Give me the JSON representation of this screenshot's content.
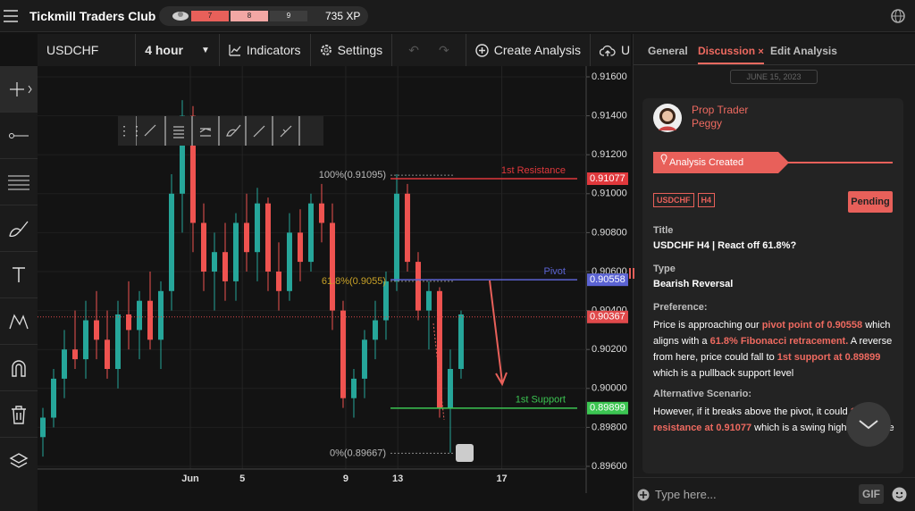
{
  "top_bar": {
    "title": "Tickmill Traders Club",
    "levels": [
      "7",
      "8",
      "9"
    ],
    "xp": "735 XP"
  },
  "toolbar": {
    "symbol": "USDCHF",
    "interval": "4 hour",
    "indicators": "Indicators",
    "settings": "Settings",
    "create": "Create Analysis",
    "upload": "Upload"
  },
  "chart_data": {
    "type": "candlestick",
    "x": [
      0,
      1,
      2,
      3,
      4,
      5,
      6,
      7,
      8,
      9,
      10,
      11,
      12,
      13,
      14,
      15,
      16,
      17,
      18,
      19,
      20,
      21,
      22,
      23,
      24,
      25,
      26,
      27,
      28,
      29,
      30,
      31,
      32,
      33,
      34,
      35,
      36,
      37,
      38,
      39
    ],
    "open": [
      0.8975,
      0.8985,
      0.9005,
      0.902,
      0.9015,
      0.9035,
      0.9025,
      0.901,
      0.9038,
      0.903,
      0.9045,
      0.9025,
      0.905,
      0.91,
      0.914,
      0.9085,
      0.906,
      0.907,
      0.9055,
      0.9085,
      0.907,
      0.9095,
      0.906,
      0.905,
      0.908,
      0.9065,
      0.9095,
      0.9085,
      0.904,
      0.8995,
      0.9005,
      0.9025,
      0.9035,
      0.9055,
      0.91,
      0.9065,
      0.904,
      0.905,
      0.899,
      0.901
    ],
    "high": [
      0.899,
      0.901,
      0.903,
      0.904,
      0.9045,
      0.905,
      0.904,
      0.9045,
      0.9055,
      0.905,
      0.906,
      0.9055,
      0.911,
      0.9148,
      0.9145,
      0.9095,
      0.908,
      0.9085,
      0.909,
      0.91,
      0.9103,
      0.9098,
      0.9075,
      0.909,
      0.9092,
      0.91,
      0.9105,
      0.9095,
      0.9045,
      0.901,
      0.903,
      0.9045,
      0.906,
      0.911,
      0.9105,
      0.907,
      0.9055,
      0.9052,
      0.902,
      0.904
    ],
    "low": [
      0.8965,
      0.898,
      0.8995,
      0.901,
      0.9005,
      0.9015,
      0.9005,
      0.9,
      0.902,
      0.9015,
      0.902,
      0.901,
      0.904,
      0.908,
      0.907,
      0.905,
      0.904,
      0.9045,
      0.9045,
      0.906,
      0.9055,
      0.905,
      0.904,
      0.9045,
      0.9055,
      0.906,
      0.9075,
      0.903,
      0.899,
      0.8985,
      0.8995,
      0.9015,
      0.9025,
      0.905,
      0.906,
      0.9035,
      0.902,
      0.8985,
      0.8967,
      0.9005
    ],
    "close": [
      0.8985,
      0.9005,
      0.902,
      0.9015,
      0.9035,
      0.9025,
      0.901,
      0.9038,
      0.903,
      0.9045,
      0.9025,
      0.905,
      0.91,
      0.914,
      0.9085,
      0.906,
      0.907,
      0.9055,
      0.9085,
      0.907,
      0.9095,
      0.906,
      0.905,
      0.908,
      0.9065,
      0.9095,
      0.9085,
      0.904,
      0.8995,
      0.9005,
      0.9025,
      0.9035,
      0.9055,
      0.91,
      0.9065,
      0.904,
      0.905,
      0.899,
      0.901,
      0.9038
    ],
    "up_color": "#26a69a",
    "down_color": "#ef5350",
    "xlim": [
      -0.5,
      50.67
    ],
    "ylim": [
      0.896,
      0.916
    ],
    "yticks": [
      {
        "value": 0.916,
        "label": "0.91600"
      },
      {
        "value": 0.914,
        "label": "0.91400"
      },
      {
        "value": 0.912,
        "label": "0.91200"
      },
      {
        "value": 0.91,
        "label": "0.91000"
      },
      {
        "value": 0.908,
        "label": "0.90800"
      },
      {
        "value": 0.906,
        "label": "0.90600"
      },
      {
        "value": 0.904,
        "label": "0.90400"
      },
      {
        "value": 0.902,
        "label": "0.90200"
      },
      {
        "value": 0.9,
        "label": "0.90000"
      },
      {
        "value": 0.898,
        "label": "0.89800"
      },
      {
        "value": 0.896,
        "label": "0.89600"
      }
    ],
    "xticks": [
      {
        "value": 13.75,
        "label": "Jun"
      },
      {
        "value": 18.6,
        "label": "5"
      },
      {
        "value": 28.25,
        "label": "9"
      },
      {
        "value": 33.1,
        "label": "13"
      },
      {
        "value": 42.8,
        "label": "17"
      }
    ],
    "grid": true,
    "levels": [
      {
        "name": "1st Resistance",
        "value": 0.91077,
        "value_label": "0.91077",
        "color": "#e0383c"
      },
      {
        "name": "Pivot",
        "value": 0.90558,
        "value_label": "0.90558",
        "color": "#5b63d3"
      },
      {
        "name": "1st Support",
        "value": 0.89899,
        "value_label": "0.89899",
        "color": "#3cc552"
      }
    ],
    "last_price": {
      "value": 0.90367,
      "value_label": "0.90367",
      "color": "#e0494b"
    },
    "fib": [
      {
        "label": "100%(0.91095)",
        "value": 0.91095,
        "color": "#bbbbbb"
      },
      {
        "label": "61.8%(0.9055)",
        "value": 0.9055,
        "color": "#c9a227"
      },
      {
        "label": "0%(0.89667)",
        "value": 0.89667,
        "color": "#bbbbbb"
      }
    ]
  },
  "panel": {
    "tabs": [
      "General",
      "Discussion",
      "Edit Analysis"
    ],
    "date": "JUNE 15, 2023",
    "author": {
      "role": "Prop Trader",
      "name": "Peggy"
    },
    "banner": "Analysis Created",
    "tags": [
      "USDCHF",
      "H4"
    ],
    "status": "Pending",
    "fields": [
      {
        "label": "Title",
        "value": "USDCHF H4 | React off 61.8%?"
      },
      {
        "label": "Type",
        "value": "Bearish Reversal"
      }
    ],
    "sections": [
      {
        "label": "Preference:",
        "segments": [
          {
            "text": "Price is approaching our ",
            "em": false
          },
          {
            "text": "pivot point of 0.90558",
            "em": true
          },
          {
            "text": " which aligns with a ",
            "em": false
          },
          {
            "text": "61.8% Fibonacci retracement.",
            "em": true
          },
          {
            "text": " A reverse from here, price could fall to ",
            "em": false
          },
          {
            "text": "1st support at 0.89899",
            "em": true
          },
          {
            "text": " which is a pullback support level",
            "em": false
          }
        ]
      },
      {
        "label": "Alternative Scenario:",
        "segments": [
          {
            "text": "However, if it breaks above the pivot, it could ",
            "em": false
          },
          {
            "text": "1st resistance at 0.91077",
            "em": true
          },
          {
            "text": " which is a swing high resistance",
            "em": false
          }
        ]
      }
    ],
    "input_placeholder": "Type here...",
    "gif": "GIF"
  }
}
